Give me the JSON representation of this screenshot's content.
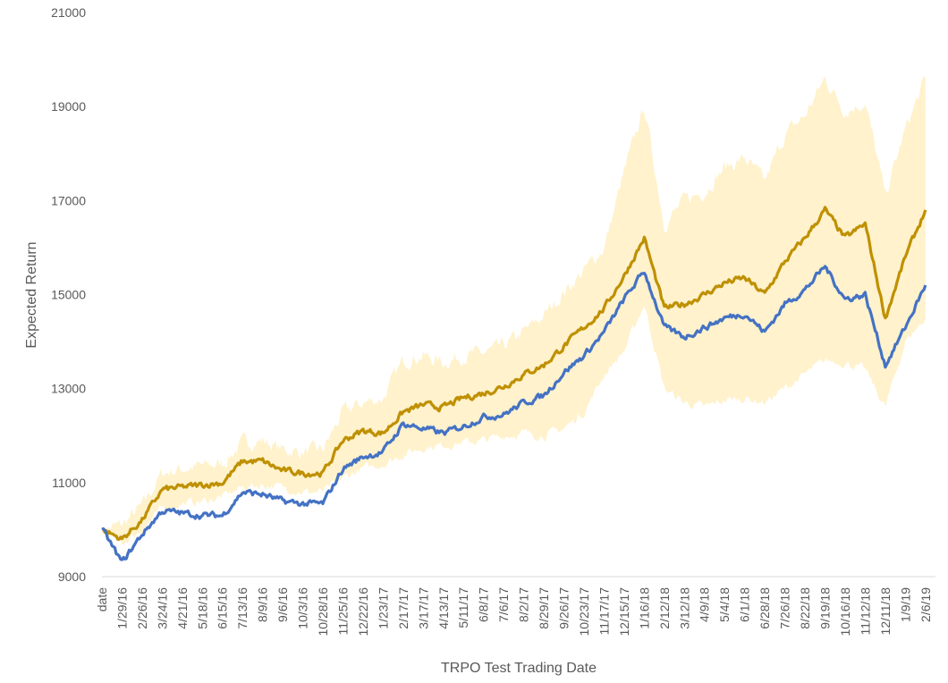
{
  "chart_data": {
    "type": "line",
    "title": "",
    "xlabel": "TRPO Test Trading Date",
    "ylabel": "Expected Return",
    "ylim": [
      9000,
      21000
    ],
    "y_ticks": [
      9000,
      11000,
      13000,
      15000,
      17000,
      19000,
      21000
    ],
    "x_tick_labels": [
      "date",
      "1/29/16",
      "2/26/16",
      "3/24/16",
      "4/21/16",
      "5/18/16",
      "6/15/16",
      "7/13/16",
      "8/9/16",
      "9/6/16",
      "10/3/16",
      "10/28/16",
      "11/25/16",
      "12/22/16",
      "1/23/17",
      "2/17/17",
      "3/17/17",
      "4/13/17",
      "5/11/17",
      "6/8/17",
      "7/6/17",
      "8/2/17",
      "8/29/17",
      "9/26/17",
      "10/23/17",
      "11/17/17",
      "12/15/17",
      "1/16/18",
      "2/12/18",
      "3/12/18",
      "4/9/18",
      "5/4/18",
      "6/1/18",
      "6/28/18",
      "7/26/18",
      "8/22/18",
      "9/19/18",
      "10/16/18",
      "11/12/18",
      "12/11/18",
      "1/9/19",
      "2/6/19"
    ],
    "grid": false,
    "legend": "none",
    "series": [
      {
        "role": "mean",
        "color": "#bf9000",
        "values": [
          10000,
          9800,
          10200,
          10850,
          10900,
          10950,
          11000,
          11450,
          11450,
          11250,
          11200,
          11200,
          11900,
          12100,
          12050,
          12500,
          12650,
          12600,
          12800,
          12900,
          13050,
          13300,
          13500,
          13900,
          14300,
          14700,
          15400,
          16200,
          14700,
          14800,
          15000,
          15250,
          15350,
          15000,
          15700,
          16200,
          16800,
          16200,
          16500,
          14500,
          15800,
          16800
        ]
      },
      {
        "role": "low",
        "color": "#4472c4",
        "values": [
          10000,
          9300,
          9900,
          10400,
          10350,
          10300,
          10300,
          10800,
          10750,
          10600,
          10550,
          10550,
          11300,
          11550,
          11650,
          12250,
          12150,
          12050,
          12200,
          12400,
          12450,
          12700,
          12850,
          13350,
          13700,
          14200,
          14900,
          15500,
          14300,
          14100,
          14300,
          14500,
          14600,
          14200,
          14800,
          15100,
          15600,
          14900,
          15000,
          13500,
          14300,
          15200
        ]
      },
      {
        "role": "band",
        "color": "#fff2cc",
        "lower": [
          10000,
          9700,
          10000,
          10450,
          10550,
          10600,
          10700,
          10900,
          10950,
          10900,
          10800,
          10800,
          11100,
          11300,
          11400,
          11600,
          11750,
          11800,
          11850,
          11900,
          12000,
          12050,
          12000,
          12150,
          12500,
          13300,
          13800,
          14800,
          13000,
          12700,
          12600,
          12750,
          12800,
          12700,
          13000,
          13300,
          13600,
          13550,
          13400,
          12600,
          14000,
          14500
        ],
        "upper": [
          10000,
          10100,
          10500,
          11200,
          11300,
          11350,
          11400,
          11850,
          11900,
          11700,
          11650,
          11700,
          12500,
          12700,
          12800,
          13600,
          13700,
          13550,
          13700,
          13750,
          13900,
          14200,
          14550,
          15050,
          15500,
          16000,
          17600,
          19000,
          16500,
          17000,
          17200,
          17700,
          17900,
          17400,
          18400,
          18800,
          19600,
          18900,
          19100,
          17100,
          18500,
          19600
        ]
      }
    ]
  }
}
